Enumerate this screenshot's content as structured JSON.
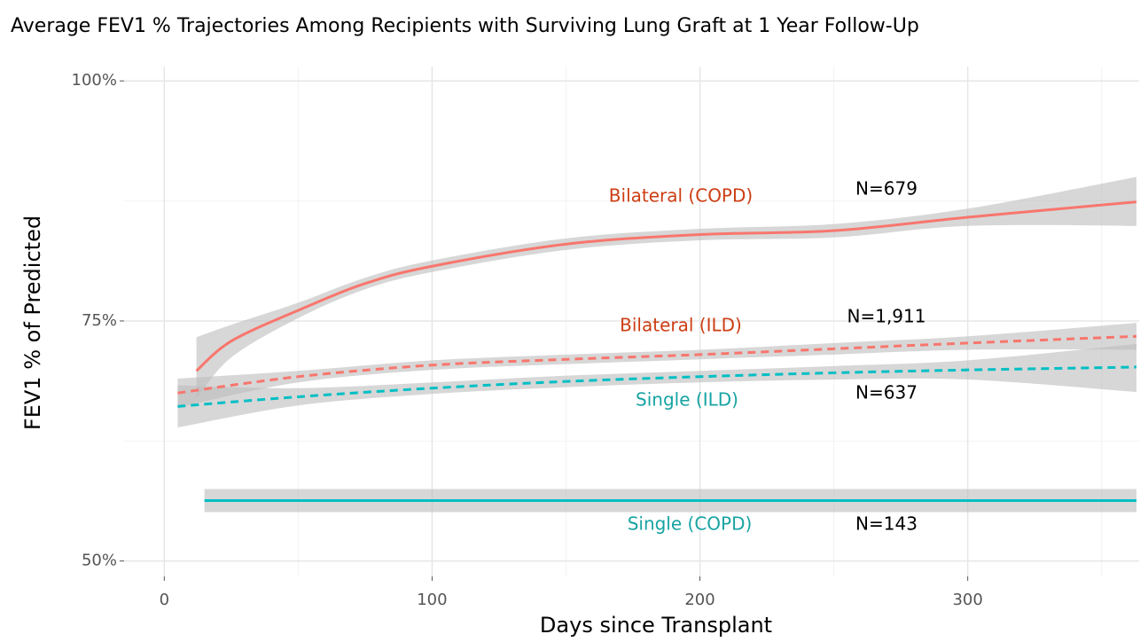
{
  "chart_data": {
    "type": "line",
    "title": "Average FEV1 % Trajectories Among Recipients with Surviving Lung Graft at 1 Year Follow-Up",
    "x_label": "Days since Transplant",
    "y_label": "FEV1 % of Predicted",
    "xlim": [
      -15,
      364
    ],
    "ylim": [
      48.4,
      101.5
    ],
    "xticks": [
      0,
      100,
      200,
      300
    ],
    "yticks": [
      {
        "value": 50,
        "label": "50%"
      },
      {
        "value": 75,
        "label": "75%"
      },
      {
        "value": 100,
        "label": "100%"
      }
    ],
    "xminor": [
      50,
      150,
      250,
      350
    ],
    "yminor": [
      62.5,
      87.5
    ],
    "grid": true,
    "band_color": "#bdbdbd",
    "series": [
      {
        "name": "Bilateral (COPD)",
        "color": "#f8766d",
        "dash": false,
        "x": [
          12,
          25,
          50,
          75,
          100,
          150,
          200,
          250,
          300,
          363
        ],
        "values": [
          69.8,
          72.9,
          76.1,
          78.9,
          80.7,
          83.0,
          84.0,
          84.4,
          85.8,
          87.4
        ],
        "lower": [
          66.9,
          71.2,
          75.3,
          78.3,
          80.1,
          82.4,
          83.4,
          83.7,
          84.9,
          84.9
        ],
        "upper": [
          73.3,
          74.6,
          76.9,
          79.5,
          81.3,
          83.6,
          84.6,
          85.1,
          86.7,
          90.0
        ]
      },
      {
        "name": "Bilateral (ILD)",
        "color": "#f8766d",
        "dash": true,
        "x": [
          5,
          50,
          100,
          150,
          200,
          250,
          300,
          363
        ],
        "values": [
          67.5,
          69.2,
          70.4,
          71.0,
          71.5,
          72.1,
          72.7,
          73.4
        ],
        "lower": [
          66.0,
          68.6,
          69.9,
          70.5,
          71.0,
          71.5,
          72.0,
          72.0
        ],
        "upper": [
          69.0,
          69.8,
          70.9,
          71.5,
          72.0,
          72.7,
          73.4,
          74.8
        ]
      },
      {
        "name": "Single (ILD)",
        "color": "#00bfc4",
        "dash": true,
        "x": [
          5,
          50,
          100,
          150,
          200,
          250,
          300,
          363
        ],
        "values": [
          66.1,
          67.1,
          68.0,
          68.7,
          69.2,
          69.6,
          69.9,
          70.2
        ],
        "lower": [
          63.9,
          66.2,
          67.4,
          68.1,
          68.6,
          68.9,
          68.9,
          67.6
        ],
        "upper": [
          68.3,
          68.0,
          68.6,
          69.3,
          69.8,
          70.3,
          70.9,
          72.6
        ]
      },
      {
        "name": "Single (COPD)",
        "color": "#00bfc4",
        "dash": false,
        "x": [
          15,
          363
        ],
        "values": [
          56.3,
          56.3
        ],
        "lower": [
          55.1,
          55.1
        ],
        "upper": [
          57.5,
          57.5
        ]
      }
    ],
    "annotations": [
      {
        "text": "Bilateral (COPD)",
        "color": "#cc3d12"
      },
      {
        "text": "N=679",
        "color": "#000000"
      },
      {
        "text": "Bilateral (ILD)",
        "color": "#cc3d12"
      },
      {
        "text": "N=1,911",
        "color": "#000000"
      },
      {
        "text": "Single (ILD)",
        "color": "#17a3a3"
      },
      {
        "text": "N=637",
        "color": "#000000"
      },
      {
        "text": "Single (COPD)",
        "color": "#17a3a3"
      },
      {
        "text": "N=143",
        "color": "#000000"
      }
    ]
  }
}
